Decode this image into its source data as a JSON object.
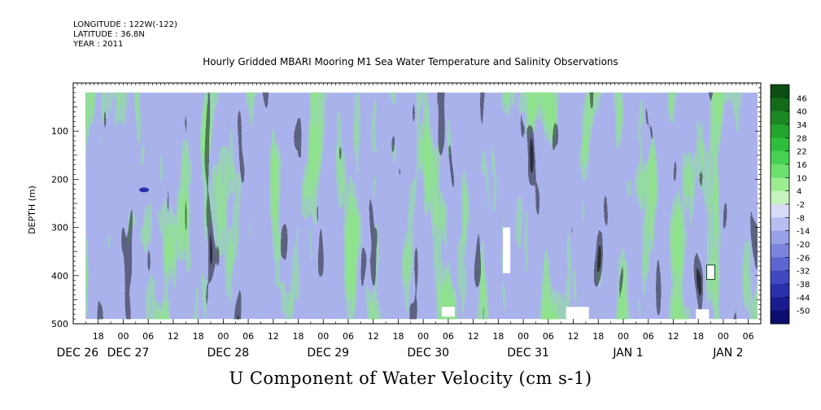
{
  "header": {
    "longitude": "LONGITUDE : 122W(-122)",
    "latitude": "LATITUDE : 36.8N",
    "year": "YEAR : 2011"
  },
  "chart_data": {
    "type": "heatmap",
    "title": "Hourly Gridded MBARI Mooring M1 Sea Water Temperature and Salinity Observations",
    "variable_label": "U Component of Water Velocity (cm s-1)",
    "ylabel": "DEPTH (m)",
    "ylim": [
      500,
      0
    ],
    "y_ticks": [
      100,
      200,
      300,
      400,
      500
    ],
    "x_hour_labels": [
      "18",
      "00",
      "06",
      "12",
      "18",
      "00",
      "06",
      "12",
      "18",
      "00",
      "06",
      "12",
      "18",
      "00",
      "06",
      "12",
      "18",
      "00",
      "06",
      "12",
      "18",
      "00",
      "06",
      "12",
      "18",
      "00",
      "06"
    ],
    "x_day_labels": [
      "DEC 26",
      "DEC 27",
      "DEC 28",
      "DEC 29",
      "DEC 30",
      "DEC 31",
      "JAN 1",
      "JAN 2"
    ],
    "x_range": [
      "2011-12-26 12:00",
      "2012-01-02 09:00"
    ],
    "data_depth_range": [
      20,
      490
    ],
    "colorbar": {
      "levels": [
        48,
        46,
        40,
        34,
        28,
        22,
        16,
        10,
        4,
        -2,
        -8,
        -14,
        -20,
        -26,
        -32,
        -38,
        -44,
        -50
      ],
      "tick_labels": [
        "46",
        "40",
        "34",
        "28",
        "22",
        "16",
        "10",
        "4",
        "-2",
        "-8",
        "-14",
        "-20",
        "-26",
        "-32",
        "-38",
        "-44",
        "-50"
      ],
      "colors": [
        "#0b4d12",
        "#136b1a",
        "#1b8824",
        "#23a52e",
        "#2fbe3c",
        "#46d150",
        "#6ee06e",
        "#9cec92",
        "#c6f3bd",
        "#d9dcf7",
        "#b7bef0",
        "#98a0e7",
        "#7b84dd",
        "#5d66d0",
        "#4149c0",
        "#2a30ab",
        "#181c8e",
        "#0b0d6c"
      ]
    },
    "value_range_shown": [
      -26,
      22
    ],
    "missing_blocks": [
      {
        "depth": [
          465,
          485
        ],
        "time": "2011-12-30 06:00"
      },
      {
        "depth": [
          300,
          395
        ],
        "time": "2011-12-30 20:00"
      },
      {
        "depth": [
          465,
          490
        ],
        "time": "2011-12-31 13:00"
      },
      {
        "depth": [
          470,
          490
        ],
        "time": "2012-01-01 19:00"
      }
    ]
  }
}
